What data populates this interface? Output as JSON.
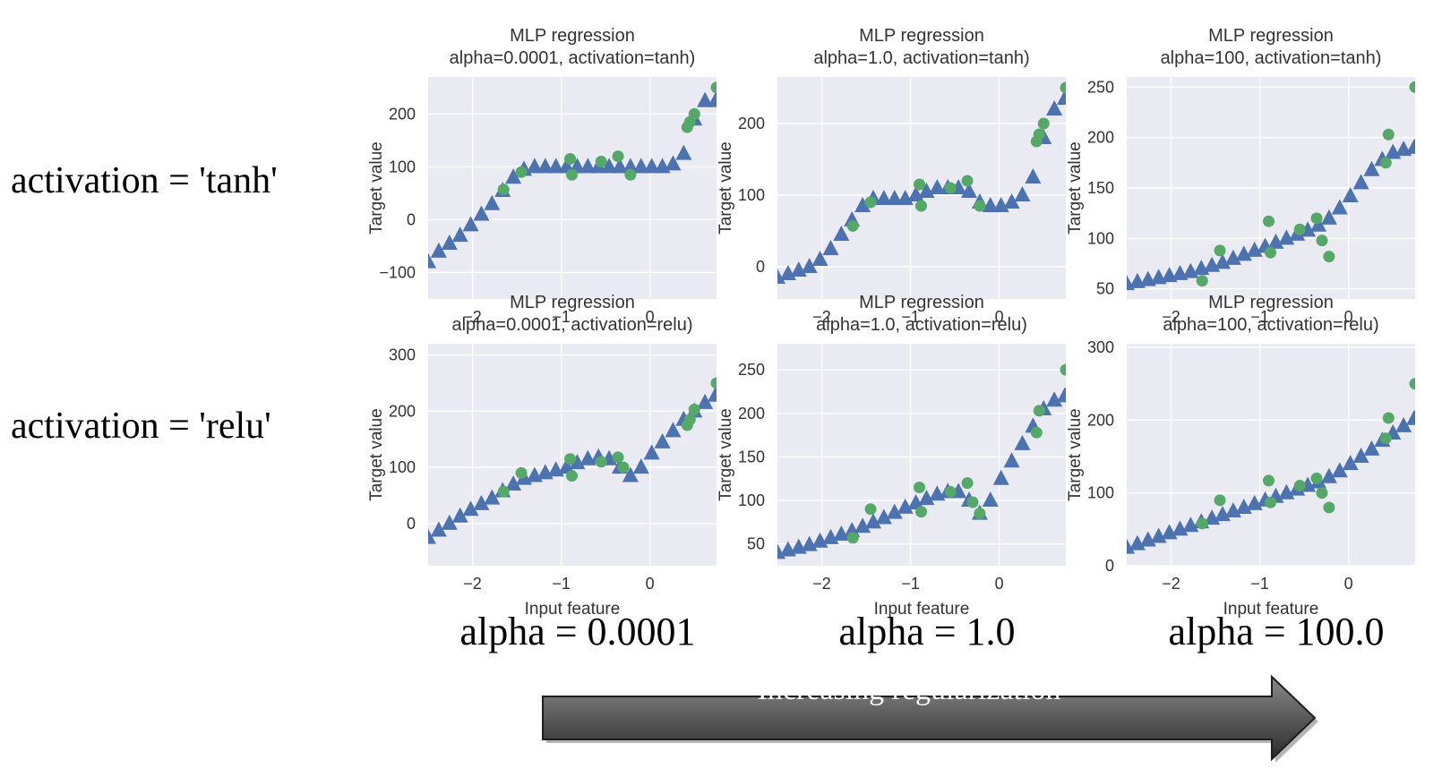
{
  "rows": [
    "activation = 'tanh'",
    "activation = 'relu'"
  ],
  "columns": [
    "alpha = 0.0001",
    "alpha = 1.0",
    "alpha = 100.0"
  ],
  "arrow_label": "Increasing regularization",
  "colors": {
    "plot_bg": "#eaeaf2",
    "grid": "#ffffff",
    "prediction": "#4c72b0",
    "training": "#55a868"
  },
  "chart_data": [
    {
      "type": "scatter",
      "title": "MLP regression\nalpha=0.0001, activation=tanh)",
      "xlabel": "Input feature",
      "ylabel": "Target value",
      "xlim": [
        -2.5,
        0.75
      ],
      "ylim": [
        -150,
        270
      ],
      "xticks": [
        -2,
        -1,
        0
      ],
      "xtick_labels": [
        "−2",
        "−1",
        "0"
      ],
      "yticks": [
        -100,
        0,
        100,
        200
      ],
      "ytick_labels": [
        "−100",
        "0",
        "100",
        "200"
      ],
      "show_xlabel": false,
      "series": [
        {
          "name": "",
          "marker": "triangle",
          "x": [
            -2.5,
            -2.38,
            -2.26,
            -2.14,
            -2.02,
            -1.9,
            -1.78,
            -1.66,
            -1.54,
            -1.42,
            -1.3,
            -1.18,
            -1.06,
            -0.94,
            -0.82,
            -0.7,
            -0.58,
            -0.46,
            -0.34,
            -0.22,
            -0.1,
            0.02,
            0.14,
            0.26,
            0.38,
            0.5,
            0.62,
            0.74
          ],
          "y": [
            -80,
            -60,
            -45,
            -30,
            -10,
            10,
            30,
            55,
            80,
            95,
            100,
            100,
            100,
            100,
            100,
            100,
            100,
            100,
            100,
            100,
            100,
            100,
            100,
            105,
            125,
            190,
            225,
            225
          ]
        },
        {
          "name": "",
          "marker": "circle",
          "x": [
            -1.65,
            -1.45,
            -0.9,
            -0.88,
            -0.55,
            -0.36,
            -0.22,
            0.42,
            0.45,
            0.5,
            0.75
          ],
          "y": [
            57,
            90,
            115,
            85,
            110,
            120,
            85,
            175,
            185,
            200,
            250
          ]
        }
      ]
    },
    {
      "type": "scatter",
      "title": "MLP regression\nalpha=1.0, activation=tanh)",
      "xlabel": "Input feature",
      "ylabel": "Target value",
      "xlim": [
        -2.5,
        0.75
      ],
      "ylim": [
        -45,
        265
      ],
      "xticks": [
        -2,
        -1,
        0
      ],
      "xtick_labels": [
        "−2",
        "−1",
        "0"
      ],
      "yticks": [
        0,
        100,
        200
      ],
      "ytick_labels": [
        "0",
        "100",
        "200"
      ],
      "show_xlabel": false,
      "series": [
        {
          "name": "",
          "marker": "triangle",
          "x": [
            -2.5,
            -2.38,
            -2.26,
            -2.14,
            -2.02,
            -1.9,
            -1.78,
            -1.66,
            -1.54,
            -1.42,
            -1.3,
            -1.18,
            -1.06,
            -0.94,
            -0.82,
            -0.7,
            -0.58,
            -0.46,
            -0.34,
            -0.22,
            -0.1,
            0.02,
            0.14,
            0.26,
            0.38,
            0.5,
            0.62,
            0.74
          ],
          "y": [
            -15,
            -10,
            -5,
            0,
            10,
            25,
            45,
            65,
            85,
            95,
            95,
            95,
            95,
            100,
            105,
            110,
            110,
            110,
            105,
            90,
            85,
            85,
            90,
            100,
            125,
            180,
            220,
            235
          ]
        },
        {
          "name": "",
          "marker": "circle",
          "x": [
            -1.65,
            -1.45,
            -0.9,
            -0.88,
            -0.55,
            -0.36,
            -0.22,
            0.42,
            0.45,
            0.5,
            0.75
          ],
          "y": [
            57,
            90,
            115,
            85,
            110,
            120,
            85,
            175,
            185,
            200,
            250
          ]
        }
      ]
    },
    {
      "type": "scatter",
      "title": "MLP regression\nalpha=100, activation=tanh)",
      "xlabel": "Input feature",
      "ylabel": "Target value",
      "xlim": [
        -2.5,
        0.75
      ],
      "ylim": [
        40,
        260
      ],
      "xticks": [
        -2,
        -1,
        0
      ],
      "xtick_labels": [
        "−2",
        "−1",
        "0"
      ],
      "yticks": [
        50,
        100,
        150,
        200,
        250
      ],
      "ytick_labels": [
        "50",
        "100",
        "150",
        "200",
        "250"
      ],
      "show_xlabel": false,
      "series": [
        {
          "name": "",
          "marker": "triangle",
          "x": [
            -2.5,
            -2.38,
            -2.26,
            -2.14,
            -2.02,
            -1.9,
            -1.78,
            -1.66,
            -1.54,
            -1.42,
            -1.3,
            -1.18,
            -1.06,
            -0.94,
            -0.82,
            -0.7,
            -0.58,
            -0.46,
            -0.34,
            -0.22,
            -0.1,
            0.02,
            0.14,
            0.26,
            0.38,
            0.5,
            0.62,
            0.74
          ],
          "y": [
            55,
            57,
            59,
            61,
            63,
            65,
            67,
            70,
            73,
            76,
            80,
            84,
            88,
            92,
            96,
            100,
            104,
            108,
            113,
            120,
            130,
            142,
            155,
            168,
            178,
            185,
            188,
            190
          ]
        },
        {
          "name": "",
          "marker": "circle",
          "x": [
            -1.65,
            -1.45,
            -0.9,
            -0.88,
            -0.55,
            -0.36,
            -0.3,
            -0.22,
            0.42,
            0.45,
            0.75
          ],
          "y": [
            58,
            88,
            117,
            86,
            109,
            120,
            98,
            82,
            175,
            203,
            250
          ]
        }
      ]
    },
    {
      "type": "scatter",
      "title": "MLP regression\nalpha=0.0001, activation=relu)",
      "xlabel": "Input feature",
      "ylabel": "Target value",
      "xlim": [
        -2.5,
        0.75
      ],
      "ylim": [
        -75,
        320
      ],
      "xticks": [
        -2,
        -1,
        0
      ],
      "xtick_labels": [
        "−2",
        "−1",
        "0"
      ],
      "yticks": [
        0,
        100,
        200,
        300
      ],
      "ytick_labels": [
        "0",
        "100",
        "200",
        "300"
      ],
      "show_xlabel": true,
      "series": [
        {
          "name": "",
          "marker": "triangle",
          "x": [
            -2.5,
            -2.38,
            -2.26,
            -2.14,
            -2.02,
            -1.9,
            -1.78,
            -1.66,
            -1.54,
            -1.42,
            -1.3,
            -1.18,
            -1.06,
            -0.94,
            -0.82,
            -0.7,
            -0.58,
            -0.46,
            -0.34,
            -0.22,
            -0.1,
            0.02,
            0.14,
            0.26,
            0.38,
            0.5,
            0.62,
            0.74
          ],
          "y": [
            -25,
            -12,
            0,
            13,
            25,
            35,
            45,
            58,
            70,
            80,
            85,
            90,
            95,
            100,
            108,
            115,
            118,
            115,
            100,
            85,
            100,
            125,
            145,
            165,
            185,
            200,
            215,
            228
          ]
        },
        {
          "name": "",
          "marker": "circle",
          "x": [
            -1.65,
            -1.45,
            -0.9,
            -0.88,
            -0.55,
            -0.36,
            -0.3,
            0.42,
            0.45,
            0.5,
            0.75
          ],
          "y": [
            57,
            90,
            115,
            85,
            110,
            118,
            100,
            175,
            185,
            203,
            250
          ]
        }
      ]
    },
    {
      "type": "scatter",
      "title": "MLP regression\nalpha=1.0, activation=relu)",
      "xlabel": "Input feature",
      "ylabel": "Target value",
      "xlim": [
        -2.5,
        0.75
      ],
      "ylim": [
        25,
        280
      ],
      "xticks": [
        -2,
        -1,
        0
      ],
      "xtick_labels": [
        "−2",
        "−1",
        "0"
      ],
      "yticks": [
        50,
        100,
        150,
        200,
        250
      ],
      "ytick_labels": [
        "50",
        "100",
        "150",
        "200",
        "250"
      ],
      "show_xlabel": true,
      "series": [
        {
          "name": "",
          "marker": "triangle",
          "x": [
            -2.5,
            -2.38,
            -2.26,
            -2.14,
            -2.02,
            -1.9,
            -1.78,
            -1.66,
            -1.54,
            -1.42,
            -1.3,
            -1.18,
            -1.06,
            -0.94,
            -0.82,
            -0.7,
            -0.58,
            -0.46,
            -0.34,
            -0.22,
            -0.1,
            0.02,
            0.14,
            0.26,
            0.38,
            0.5,
            0.62,
            0.74
          ],
          "y": [
            40,
            43,
            46,
            49,
            53,
            57,
            61,
            65,
            70,
            75,
            80,
            86,
            92,
            97,
            102,
            107,
            110,
            110,
            100,
            85,
            100,
            125,
            145,
            165,
            185,
            205,
            215,
            220
          ]
        },
        {
          "name": "",
          "marker": "circle",
          "x": [
            -1.65,
            -1.45,
            -0.9,
            -0.88,
            -0.55,
            -0.36,
            -0.3,
            -0.22,
            0.42,
            0.45,
            0.75
          ],
          "y": [
            57,
            90,
            115,
            87,
            110,
            120,
            98,
            85,
            178,
            203,
            250
          ]
        }
      ]
    },
    {
      "type": "scatter",
      "title": "MLP regression\nalpha=100, activation=relu)",
      "xlabel": "Input feature",
      "ylabel": "Target value",
      "xlim": [
        -2.5,
        0.75
      ],
      "ylim": [
        0,
        305
      ],
      "xticks": [
        -2,
        -1,
        0
      ],
      "xtick_labels": [
        "−2",
        "−1",
        "0"
      ],
      "yticks": [
        0,
        100,
        200,
        300
      ],
      "ytick_labels": [
        "0",
        "100",
        "200",
        "300"
      ],
      "show_xlabel": true,
      "series": [
        {
          "name": "",
          "marker": "triangle",
          "x": [
            -2.5,
            -2.38,
            -2.26,
            -2.14,
            -2.02,
            -1.9,
            -1.78,
            -1.66,
            -1.54,
            -1.42,
            -1.3,
            -1.18,
            -1.06,
            -0.94,
            -0.82,
            -0.7,
            -0.58,
            -0.46,
            -0.34,
            -0.22,
            -0.1,
            0.02,
            0.14,
            0.26,
            0.38,
            0.5,
            0.62,
            0.74
          ],
          "y": [
            25,
            30,
            35,
            40,
            45,
            50,
            55,
            60,
            65,
            70,
            75,
            80,
            85,
            90,
            95,
            100,
            105,
            110,
            115,
            122,
            130,
            140,
            150,
            160,
            172,
            182,
            192,
            202
          ]
        },
        {
          "name": "",
          "marker": "circle",
          "x": [
            -1.65,
            -1.45,
            -0.9,
            -0.88,
            -0.55,
            -0.36,
            -0.3,
            -0.22,
            0.42,
            0.45,
            0.75
          ],
          "y": [
            58,
            90,
            117,
            87,
            110,
            120,
            100,
            80,
            175,
            203,
            250
          ]
        }
      ]
    }
  ]
}
